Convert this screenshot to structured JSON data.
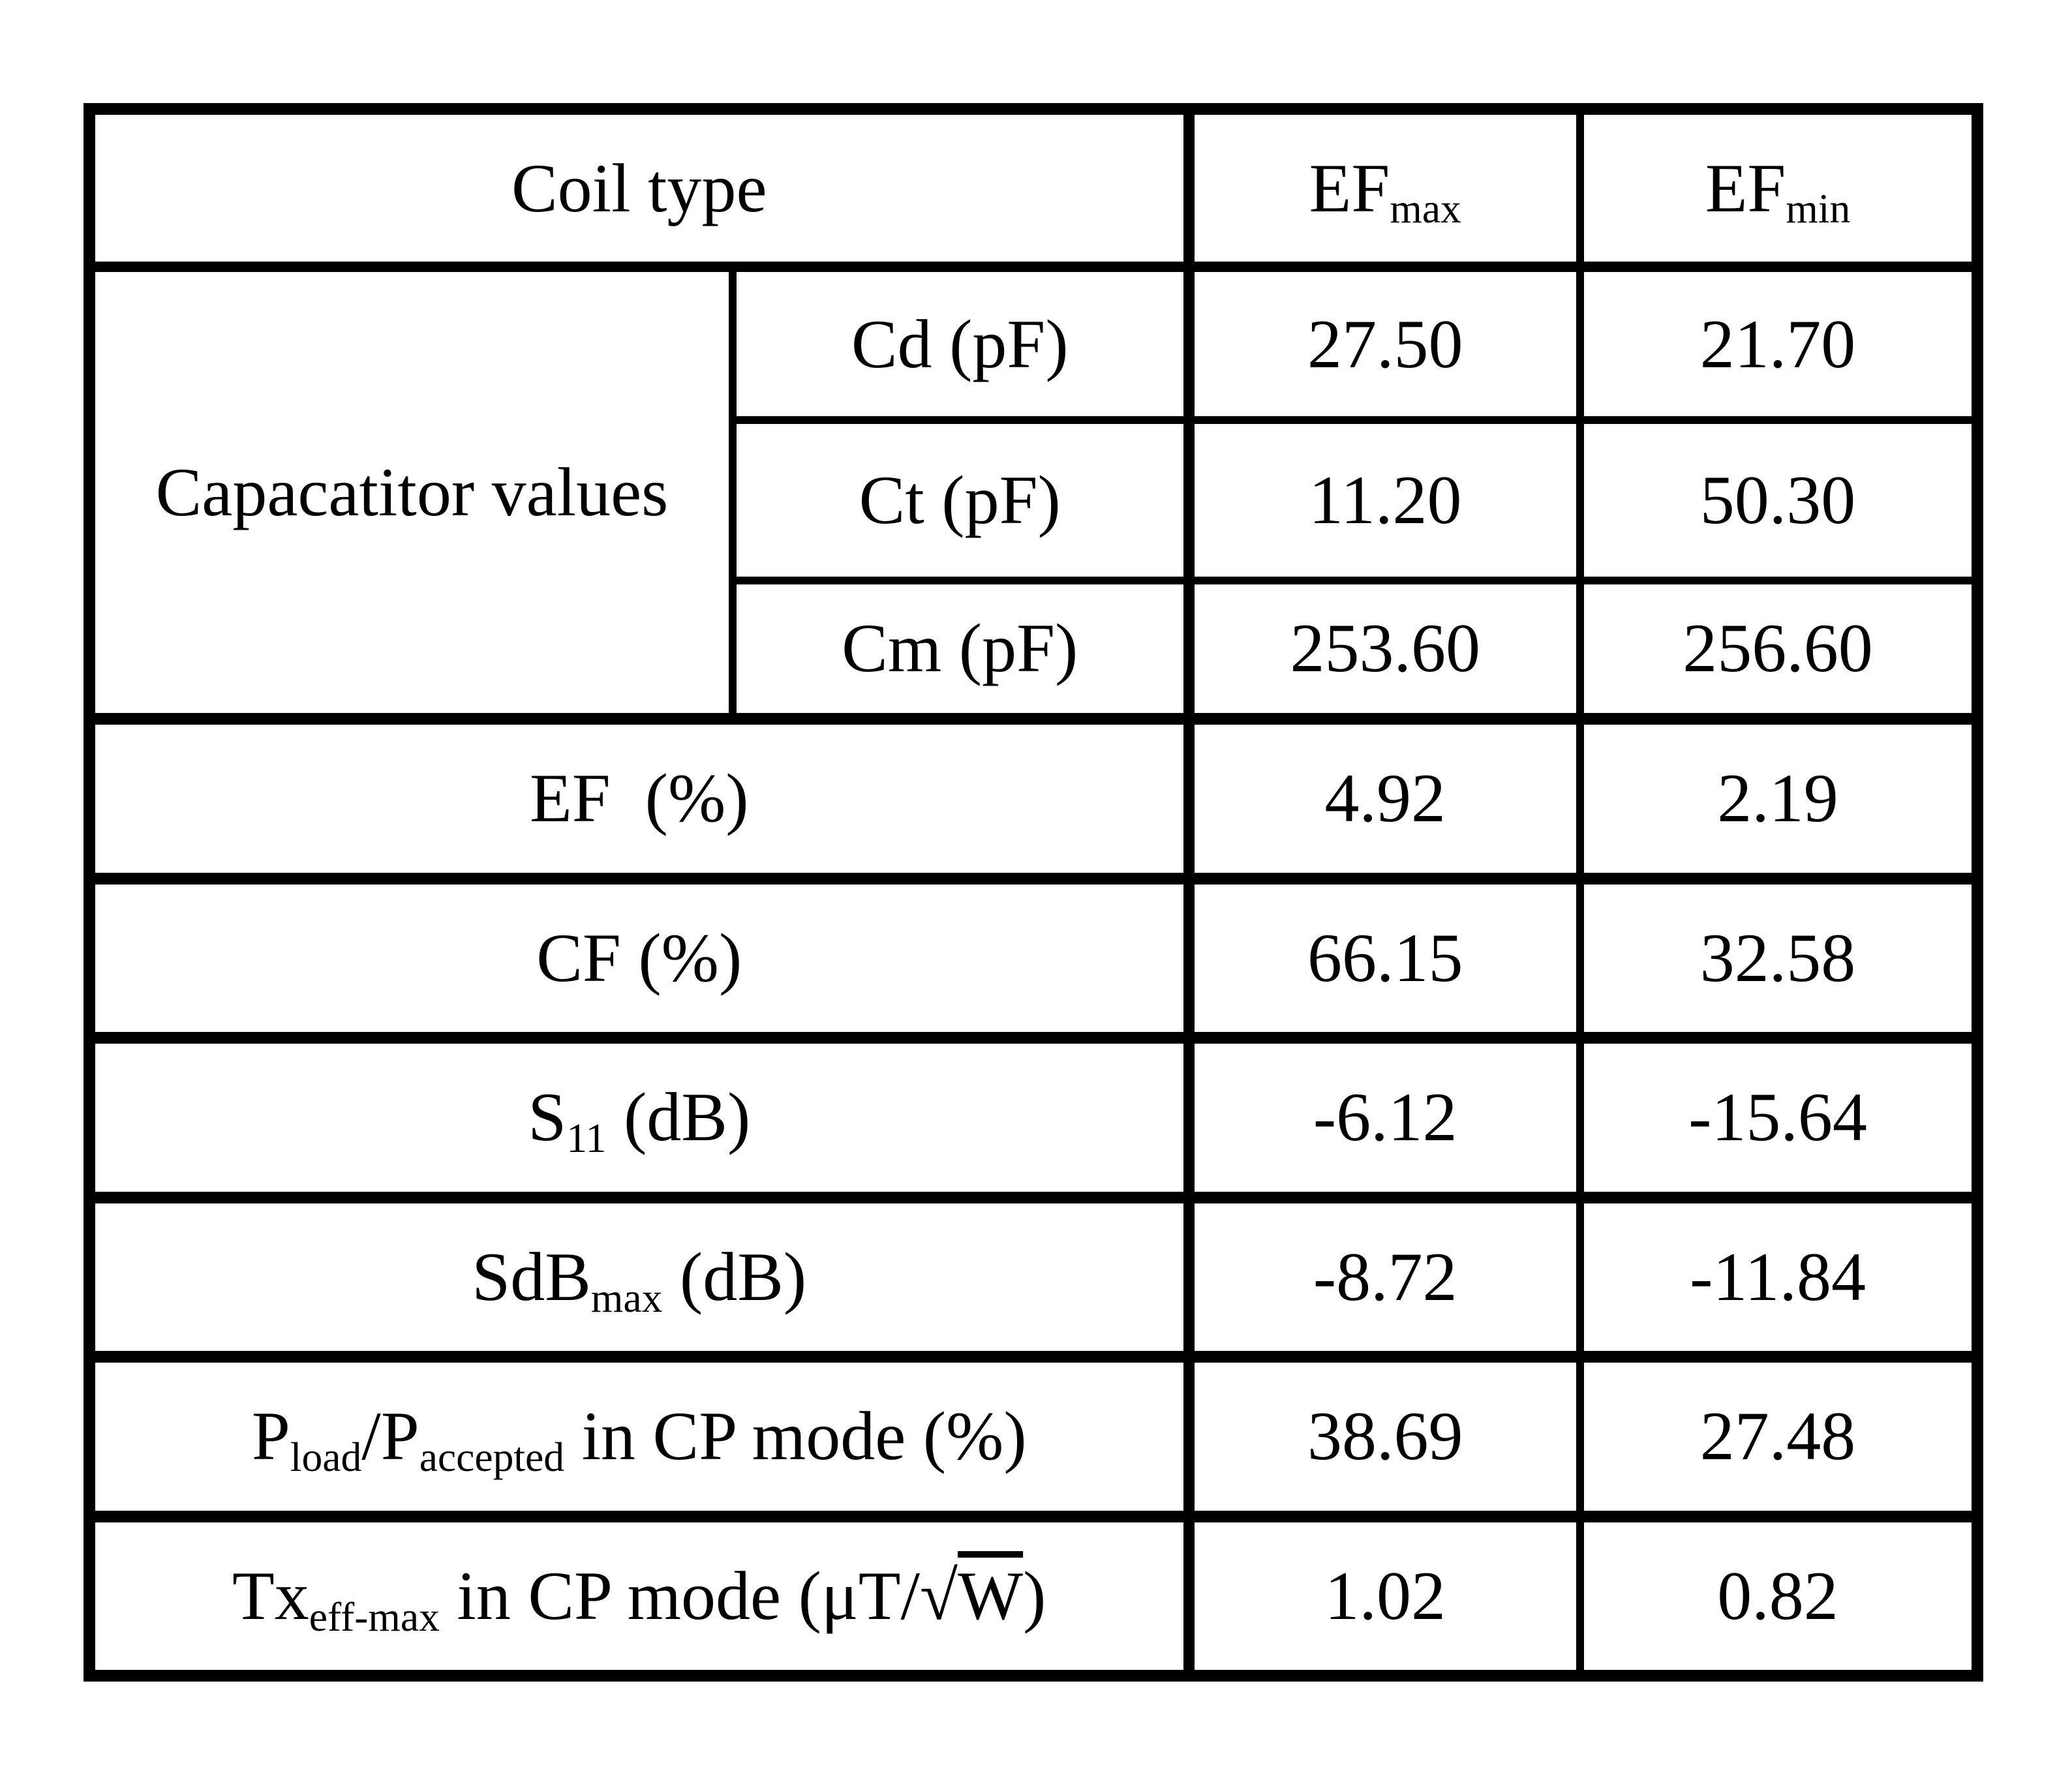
{
  "page": {
    "background_color": "#ffffff",
    "text_color": "#000000",
    "border_color": "#000000"
  },
  "table": {
    "header": {
      "coil_type_label": "Coil type",
      "ef_max_parts": [
        {
          "t": "EF"
        },
        {
          "sub": "max"
        }
      ],
      "ef_min_parts": [
        {
          "t": "EF"
        },
        {
          "sub": "min"
        }
      ]
    },
    "capacitor_group": {
      "label": "Capacatitor values",
      "sub_rows": [
        {
          "label": "Cd (pF)",
          "ef_max": "27.50",
          "ef_min": "21.70"
        },
        {
          "label": "Ct (pF)",
          "ef_max": "11.20",
          "ef_min": "50.30"
        },
        {
          "label": "Cm (pF)",
          "ef_max": "253.60",
          "ef_min": "256.60"
        }
      ]
    },
    "metric_rows": [
      {
        "label_parts": [
          {
            "t": "EF  (%)"
          }
        ],
        "ef_max": "4.92",
        "ef_min": "2.19"
      },
      {
        "label_parts": [
          {
            "t": "CF (%)"
          }
        ],
        "ef_max": "66.15",
        "ef_min": "32.58"
      },
      {
        "label_parts": [
          {
            "t": "S"
          },
          {
            "sub": "11"
          },
          {
            "t": " (dB)"
          }
        ],
        "ef_max": "-6.12",
        "ef_min": "-15.64"
      },
      {
        "label_parts": [
          {
            "t": "SdB"
          },
          {
            "sub": "max"
          },
          {
            "t": " (dB)"
          }
        ],
        "ef_max": "-8.72",
        "ef_min": "-11.84"
      },
      {
        "label_parts": [
          {
            "t": "P"
          },
          {
            "sub": "load"
          },
          {
            "t": "/P"
          },
          {
            "sub": "accepted"
          },
          {
            "t": " in CP mode (%)"
          }
        ],
        "ef_max": "38.69",
        "ef_min": "27.48"
      },
      {
        "label_parts": [
          {
            "t": "Tx"
          },
          {
            "sub": "eff-max"
          },
          {
            "t": " in CP mode (μT/"
          },
          {
            "t": "√"
          },
          {
            "t": "W",
            "over": true
          },
          {
            "t": ")"
          }
        ],
        "ef_max": "1.02",
        "ef_min": "0.82"
      }
    ]
  }
}
